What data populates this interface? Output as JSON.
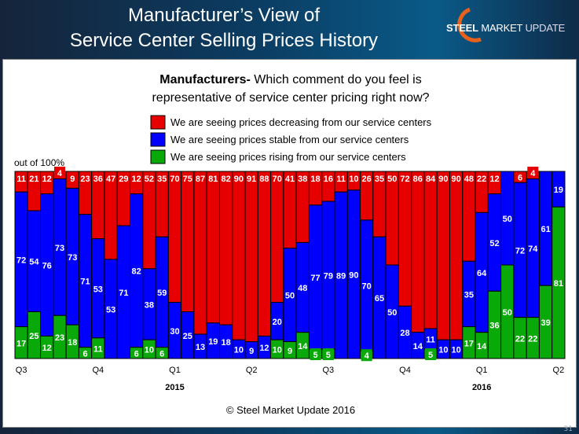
{
  "header": {
    "title_line1": "Manufacturer’s View of",
    "title_line2": "Service Center Selling Prices History",
    "logo_text_bold": "STEEL",
    "logo_text_mid": " MARKET",
    "logo_text_light": " UPDATE"
  },
  "footer": {
    "copyright": "© Steel Market Update 2016",
    "page_number": "31"
  },
  "colors": {
    "decreasing": "#e60000",
    "stable": "#0000ff",
    "rising": "#09a909"
  },
  "chart_data": {
    "type": "bar",
    "stacked": true,
    "title_bold": "Manufacturers-",
    "title_rest": " Which comment do you feel is",
    "title_line2": "representative of service center pricing right now?",
    "ylabel": "out of 100%",
    "ylim": [
      0,
      100
    ],
    "grid": false,
    "legend_position": "top-center",
    "x_tick_labels": [
      "Q3",
      "Q4",
      "Q1",
      "Q2",
      "Q3",
      "Q4",
      "Q1",
      "Q2"
    ],
    "x_tick_bar_index": [
      0,
      6,
      12,
      18,
      24,
      30,
      36,
      42
    ],
    "year_labels": [
      {
        "label": "2015",
        "bar_index": 12
      },
      {
        "label": "2016",
        "bar_index": 36
      }
    ],
    "series": [
      {
        "name": "We are seeing prices decreasing from our service centers",
        "key": "decreasing",
        "values": [
          11,
          21,
          12,
          4,
          9,
          23,
          36,
          47,
          29,
          12,
          52,
          35,
          70,
          75,
          87,
          81,
          82,
          90,
          91,
          88,
          70,
          41,
          38,
          18,
          16,
          11,
          10,
          26,
          35,
          50,
          72,
          86,
          84,
          90,
          90,
          48,
          22,
          12,
          0,
          6,
          4,
          0,
          0
        ]
      },
      {
        "name": "We are seeing prices stable from our service centers",
        "key": "stable",
        "values": [
          72,
          54,
          76,
          73,
          73,
          71,
          53,
          53,
          71,
          82,
          38,
          59,
          30,
          25,
          13,
          19,
          18,
          10,
          9,
          12,
          20,
          50,
          48,
          77,
          79,
          89,
          90,
          70,
          65,
          50,
          28,
          14,
          11,
          10,
          10,
          35,
          64,
          52,
          50,
          72,
          74,
          61,
          19
        ]
      },
      {
        "name": "We are seeing prices rising from our service centers",
        "key": "rising",
        "values": [
          17,
          25,
          12,
          23,
          18,
          6,
          11,
          0,
          0,
          6,
          10,
          6,
          0,
          0,
          0,
          0,
          0,
          0,
          0,
          0,
          10,
          9,
          14,
          5,
          5,
          0,
          0,
          4,
          0,
          0,
          0,
          0,
          5,
          0,
          0,
          17,
          14,
          36,
          50,
          22,
          22,
          39,
          81
        ]
      }
    ]
  }
}
